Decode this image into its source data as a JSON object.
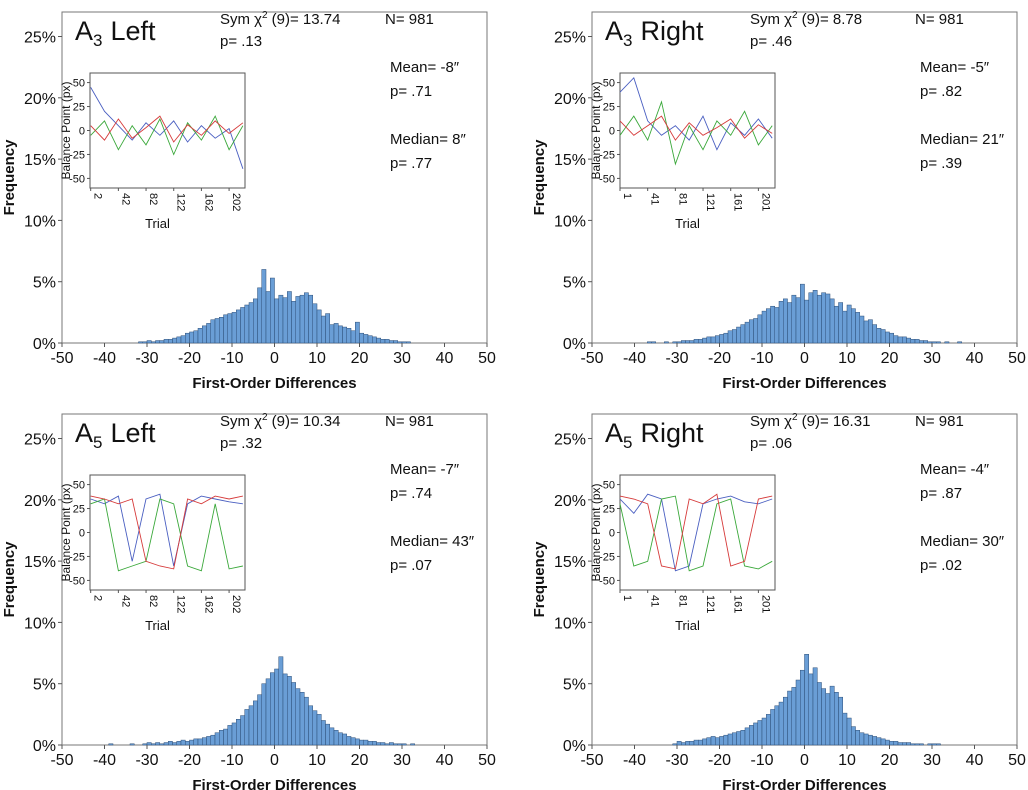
{
  "chart_data": [
    {
      "type": "histogram",
      "title": "A",
      "title_sub": "3",
      "title_rest": "Left",
      "stat": {
        "label": "Sym χ",
        "sup": "2",
        "text": "(9)= 13.74"
      },
      "annotations": [
        "p= .13",
        "N= 981",
        "Mean= -8″",
        "p= .71",
        "Median= 8″",
        "p= .77"
      ],
      "x_label": "First-Order Differences",
      "y_label": "Frequency",
      "color": "#6a9ed6",
      "bins": [
        -40,
        -39,
        -38,
        -37,
        -36,
        -35,
        -34,
        -33,
        -32,
        -31,
        -30,
        -29,
        -28,
        -27,
        -26,
        -25,
        -24,
        -23,
        -22,
        -21,
        -20,
        -19,
        -18,
        -17,
        -16,
        -15,
        -14,
        -13,
        -12,
        -11,
        -10,
        -9,
        -8,
        -7,
        -6,
        -5,
        -4,
        -3,
        -2,
        -1,
        0,
        1,
        2,
        3,
        4,
        5,
        6,
        7,
        8,
        9,
        10,
        11,
        12,
        13,
        14,
        15,
        16,
        17,
        18,
        19,
        20,
        21,
        22,
        23,
        24,
        25,
        26,
        27,
        28,
        29,
        30,
        31,
        32,
        33,
        34,
        35,
        36,
        37,
        38,
        39,
        40
      ],
      "values": [
        0,
        0,
        0,
        0,
        0,
        0,
        0,
        0,
        0.1,
        0.1,
        0.2,
        0.1,
        0.2,
        0.2,
        0.3,
        0.3,
        0.4,
        0.5,
        0.6,
        0.8,
        0.9,
        1.0,
        1.2,
        1.4,
        1.6,
        1.9,
        2.0,
        2.1,
        2.3,
        2.4,
        2.5,
        2.7,
        2.9,
        3.1,
        3.3,
        3.6,
        4.5,
        6.0,
        4.2,
        5.3,
        3.6,
        3.9,
        3.7,
        4.2,
        3.4,
        3.8,
        3.9,
        4.1,
        3.9,
        3.2,
        2.7,
        2.2,
        2.4,
        1.5,
        1.6,
        1.4,
        1.3,
        1.2,
        1.0,
        1.7,
        0.8,
        0.7,
        0.6,
        0.5,
        0.4,
        0.3,
        0.3,
        0.2,
        0.2,
        0.1,
        0.1,
        0.1,
        0,
        0,
        0,
        0,
        0,
        0,
        0,
        0
      ],
      "xlim": [
        -50,
        50
      ],
      "xticks": [
        -50,
        -40,
        -30,
        -20,
        -10,
        0,
        10,
        20,
        30,
        40,
        50
      ],
      "ylim": [
        0,
        27
      ],
      "yticks": [
        {
          "value": 0,
          "label": "0%"
        },
        {
          "value": 5,
          "label": "5%"
        },
        {
          "value": 10,
          "label": "10%"
        },
        {
          "value": 15,
          "label": "15%"
        },
        {
          "value": 20,
          "label": "20%"
        },
        {
          "value": 25,
          "label": "25%"
        }
      ],
      "inset": {
        "type": "line",
        "x_label": "Trial",
        "y_label": "Balance Point (px)",
        "x": [
          2,
          22,
          42,
          62,
          82,
          102,
          122,
          142,
          162,
          182,
          202,
          222
        ],
        "xlim": [
          1,
          225
        ],
        "xticks": [
          2,
          42,
          82,
          122,
          162,
          202
        ],
        "ylim": [
          -60,
          60
        ],
        "yticks": [
          50,
          25,
          0,
          -25,
          -50
        ],
        "series": [
          {
            "color": "#4a5fc1",
            "values": [
              45,
              20,
              5,
              -10,
              8,
              -5,
              10,
              -12,
              5,
              -8,
              2,
              -40
            ]
          },
          {
            "color": "#3aa83a",
            "values": [
              -5,
              10,
              -20,
              5,
              -15,
              12,
              -25,
              8,
              -10,
              15,
              -20,
              5
            ]
          },
          {
            "color": "#d63a3a",
            "values": [
              5,
              -10,
              12,
              -8,
              3,
              15,
              -12,
              6,
              -5,
              10,
              -3,
              8
            ]
          }
        ]
      }
    },
    {
      "type": "histogram",
      "title": "A",
      "title_sub": "3",
      "title_rest": "Right",
      "stat": {
        "label": "Sym χ",
        "sup": "2",
        "text": "(9)= 8.78"
      },
      "annotations": [
        "p= .46",
        "N= 981",
        "Mean= -5″",
        "p= .82",
        "Median= 21″",
        "p= .39"
      ],
      "x_label": "First-Order Differences",
      "y_label": "Frequency",
      "color": "#6a9ed6",
      "bins": [
        -40,
        -39,
        -38,
        -37,
        -36,
        -35,
        -34,
        -33,
        -32,
        -31,
        -30,
        -29,
        -28,
        -27,
        -26,
        -25,
        -24,
        -23,
        -22,
        -21,
        -20,
        -19,
        -18,
        -17,
        -16,
        -15,
        -14,
        -13,
        -12,
        -11,
        -10,
        -9,
        -8,
        -7,
        -6,
        -5,
        -4,
        -3,
        -2,
        -1,
        0,
        1,
        2,
        3,
        4,
        5,
        6,
        7,
        8,
        9,
        10,
        11,
        12,
        13,
        14,
        15,
        16,
        17,
        18,
        19,
        20,
        21,
        22,
        23,
        24,
        25,
        26,
        27,
        28,
        29,
        30,
        31,
        32,
        33,
        34,
        35,
        36,
        37,
        38,
        39,
        40
      ],
      "values": [
        0,
        0,
        0,
        0.1,
        0.1,
        0,
        0,
        0.1,
        0,
        0.1,
        0.1,
        0.2,
        0.2,
        0.2,
        0.3,
        0.3,
        0.4,
        0.5,
        0.5,
        0.6,
        0.7,
        0.8,
        1.0,
        1.1,
        1.3,
        1.5,
        1.7,
        1.9,
        2.0,
        2.3,
        2.6,
        2.8,
        3.0,
        2.9,
        3.4,
        3.6,
        3.3,
        3.9,
        3.7,
        4.8,
        3.5,
        4.1,
        4.3,
        3.9,
        4.1,
        4.0,
        3.6,
        3.0,
        3.3,
        2.6,
        3.1,
        2.8,
        2.5,
        2.2,
        1.8,
        1.9,
        1.5,
        1.2,
        1.1,
        0.9,
        0.8,
        0.6,
        0.5,
        0.5,
        0.4,
        0.3,
        0.3,
        0.2,
        0.2,
        0.1,
        0.1,
        0.1,
        0,
        0.1,
        0,
        0,
        0.1,
        0,
        0,
        0
      ],
      "xlim": [
        -50,
        50
      ],
      "xticks": [
        -50,
        -40,
        -30,
        -20,
        -10,
        0,
        10,
        20,
        30,
        40,
        50
      ],
      "ylim": [
        0,
        27
      ],
      "yticks": [
        {
          "value": 0,
          "label": "0%"
        },
        {
          "value": 5,
          "label": "5%"
        },
        {
          "value": 10,
          "label": "10%"
        },
        {
          "value": 15,
          "label": "15%"
        },
        {
          "value": 20,
          "label": "20%"
        },
        {
          "value": 25,
          "label": "25%"
        }
      ],
      "inset": {
        "type": "line",
        "x_label": "Trial",
        "y_label": "Balance Point (px)",
        "x": [
          1,
          21,
          41,
          61,
          81,
          101,
          121,
          141,
          161,
          181,
          201,
          221
        ],
        "xlim": [
          1,
          225
        ],
        "xticks": [
          1,
          41,
          81,
          121,
          161,
          201
        ],
        "ylim": [
          -60,
          60
        ],
        "yticks": [
          50,
          25,
          0,
          -25,
          -50
        ],
        "series": [
          {
            "color": "#4a5fc1",
            "values": [
              40,
              55,
              10,
              -5,
              5,
              -10,
              15,
              -20,
              8,
              -5,
              12,
              -8
            ]
          },
          {
            "color": "#3aa83a",
            "values": [
              -5,
              15,
              -10,
              30,
              -35,
              5,
              -20,
              10,
              -5,
              20,
              -15,
              5
            ]
          },
          {
            "color": "#d63a3a",
            "values": [
              10,
              -5,
              5,
              15,
              -10,
              8,
              -5,
              3,
              12,
              -8,
              6,
              -3
            ]
          }
        ]
      }
    },
    {
      "type": "histogram",
      "title": "A",
      "title_sub": "5",
      "title_rest": "Left",
      "stat": {
        "label": "Sym χ",
        "sup": "2",
        "text": "(9)= 10.34"
      },
      "annotations": [
        "p= .32",
        "N= 981",
        "Mean= -7″",
        "p= .74",
        "Median= 43″",
        "p= .07"
      ],
      "x_label": "First-Order Differences",
      "y_label": "Frequency",
      "color": "#6a9ed6",
      "bins": [
        -40,
        -39,
        -38,
        -37,
        -36,
        -35,
        -34,
        -33,
        -32,
        -31,
        -30,
        -29,
        -28,
        -27,
        -26,
        -25,
        -24,
        -23,
        -22,
        -21,
        -20,
        -19,
        -18,
        -17,
        -16,
        -15,
        -14,
        -13,
        -12,
        -11,
        -10,
        -9,
        -8,
        -7,
        -6,
        -5,
        -4,
        -3,
        -2,
        -1,
        0,
        1,
        2,
        3,
        4,
        5,
        6,
        7,
        8,
        9,
        10,
        11,
        12,
        13,
        14,
        15,
        16,
        17,
        18,
        19,
        20,
        21,
        22,
        23,
        24,
        25,
        26,
        27,
        28,
        29,
        30,
        31,
        32,
        33,
        34,
        35,
        36,
        37,
        38,
        39,
        40
      ],
      "values": [
        0,
        0.1,
        0,
        0,
        0,
        0,
        0.1,
        0,
        0,
        0.1,
        0.2,
        0.1,
        0.2,
        0.1,
        0.2,
        0.3,
        0.2,
        0.3,
        0.4,
        0.3,
        0.4,
        0.5,
        0.5,
        0.6,
        0.7,
        0.8,
        1.0,
        1.2,
        1.3,
        1.6,
        1.8,
        2.1,
        2.4,
        2.9,
        3.2,
        3.6,
        4.1,
        5.0,
        5.4,
        5.9,
        6.2,
        7.2,
        5.8,
        5.6,
        5.1,
        4.6,
        4.3,
        3.9,
        3.2,
        2.8,
        2.5,
        2.0,
        1.7,
        1.4,
        1.2,
        1.0,
        0.9,
        0.7,
        0.6,
        0.5,
        0.4,
        0.4,
        0.3,
        0.3,
        0.2,
        0.2,
        0.1,
        0.2,
        0.1,
        0.1,
        0.1,
        0,
        0.1,
        0,
        0,
        0,
        0,
        0,
        0,
        0
      ],
      "xlim": [
        -50,
        50
      ],
      "xticks": [
        -50,
        -40,
        -30,
        -20,
        -10,
        0,
        10,
        20,
        30,
        40,
        50
      ],
      "ylim": [
        0,
        27
      ],
      "yticks": [
        {
          "value": 0,
          "label": "0%"
        },
        {
          "value": 5,
          "label": "5%"
        },
        {
          "value": 10,
          "label": "10%"
        },
        {
          "value": 15,
          "label": "15%"
        },
        {
          "value": 20,
          "label": "20%"
        },
        {
          "value": 25,
          "label": "25%"
        }
      ],
      "inset": {
        "type": "line",
        "x_label": "Trial",
        "y_label": "Balance Point (px)",
        "x": [
          2,
          22,
          42,
          62,
          82,
          102,
          122,
          142,
          162,
          182,
          202,
          222
        ],
        "xlim": [
          1,
          225
        ],
        "xticks": [
          2,
          42,
          82,
          122,
          162,
          202
        ],
        "ylim": [
          -60,
          60
        ],
        "yticks": [
          50,
          25,
          0,
          -25,
          -50
        ],
        "series": [
          {
            "color": "#4a5fc1",
            "values": [
              35,
              30,
              38,
              -30,
              35,
              40,
              -35,
              30,
              38,
              35,
              32,
              30
            ]
          },
          {
            "color": "#3aa83a",
            "values": [
              30,
              35,
              -40,
              -35,
              -30,
              35,
              30,
              -35,
              -40,
              30,
              -38,
              -35
            ]
          },
          {
            "color": "#d63a3a",
            "values": [
              38,
              35,
              30,
              35,
              -30,
              -35,
              -38,
              35,
              30,
              38,
              35,
              38
            ]
          }
        ]
      }
    },
    {
      "type": "histogram",
      "title": "A",
      "title_sub": "5",
      "title_rest": "Right",
      "stat": {
        "label": "Sym χ",
        "sup": "2",
        "text": "(9)= 16.31"
      },
      "annotations": [
        "p= .06",
        "N= 981",
        "Mean= -4″",
        "p= .87",
        "Median= 30″",
        "p= .02"
      ],
      "x_label": "First-Order Differences",
      "y_label": "Frequency",
      "color": "#6a9ed6",
      "bins": [
        -40,
        -39,
        -38,
        -37,
        -36,
        -35,
        -34,
        -33,
        -32,
        -31,
        -30,
        -29,
        -28,
        -27,
        -26,
        -25,
        -24,
        -23,
        -22,
        -21,
        -20,
        -19,
        -18,
        -17,
        -16,
        -15,
        -14,
        -13,
        -12,
        -11,
        -10,
        -9,
        -8,
        -7,
        -6,
        -5,
        -4,
        -3,
        -2,
        -1,
        0,
        1,
        2,
        3,
        4,
        5,
        6,
        7,
        8,
        9,
        10,
        11,
        12,
        13,
        14,
        15,
        16,
        17,
        18,
        19,
        20,
        21,
        22,
        23,
        24,
        25,
        26,
        27,
        28,
        29,
        30,
        31,
        32,
        33,
        34,
        35,
        36,
        37,
        38,
        39,
        40
      ],
      "values": [
        0,
        0,
        0,
        0,
        0,
        0,
        0,
        0,
        0,
        0.1,
        0.3,
        0.2,
        0.3,
        0.3,
        0.4,
        0.4,
        0.5,
        0.6,
        0.7,
        0.6,
        0.7,
        0.8,
        0.9,
        1.0,
        1.1,
        1.2,
        1.4,
        1.6,
        1.8,
        2.0,
        2.2,
        2.5,
        2.9,
        3.2,
        3.5,
        3.9,
        4.4,
        4.7,
        5.3,
        6.1,
        7.4,
        5.8,
        6.3,
        5.1,
        4.6,
        4.2,
        4.8,
        4.3,
        3.9,
        2.6,
        2.2,
        1.5,
        1.2,
        1.0,
        0.9,
        0.8,
        0.7,
        0.6,
        0.5,
        0.4,
        0.3,
        0.3,
        0.2,
        0.2,
        0.2,
        0.1,
        0.1,
        0.1,
        0,
        0.1,
        0.1,
        0.1,
        0,
        0,
        0,
        0,
        0,
        0,
        0,
        0
      ],
      "xlim": [
        -50,
        50
      ],
      "xticks": [
        -50,
        -40,
        -30,
        -20,
        -10,
        0,
        10,
        20,
        30,
        40,
        50
      ],
      "ylim": [
        0,
        27
      ],
      "yticks": [
        {
          "value": 0,
          "label": "0%"
        },
        {
          "value": 5,
          "label": "5%"
        },
        {
          "value": 10,
          "label": "10%"
        },
        {
          "value": 15,
          "label": "15%"
        },
        {
          "value": 20,
          "label": "20%"
        },
        {
          "value": 25,
          "label": "25%"
        }
      ],
      "inset": {
        "type": "line",
        "x_label": "Trial",
        "y_label": "Balance Point (px)",
        "x": [
          1,
          21,
          41,
          61,
          81,
          101,
          121,
          141,
          161,
          181,
          201,
          221
        ],
        "xlim": [
          1,
          225
        ],
        "xticks": [
          1,
          41,
          81,
          121,
          161,
          201
        ],
        "ylim": [
          -60,
          60
        ],
        "yticks": [
          50,
          25,
          0,
          -25,
          -50
        ],
        "series": [
          {
            "color": "#4a5fc1",
            "values": [
              35,
              20,
              40,
              35,
              -40,
              -35,
              30,
              35,
              38,
              32,
              30,
              35
            ]
          },
          {
            "color": "#3aa83a",
            "values": [
              30,
              -35,
              -30,
              35,
              38,
              -40,
              -35,
              30,
              35,
              -35,
              -38,
              -30
            ]
          },
          {
            "color": "#d63a3a",
            "values": [
              38,
              35,
              30,
              -35,
              -38,
              35,
              30,
              40,
              -35,
              -30,
              35,
              38
            ]
          }
        ]
      }
    }
  ]
}
